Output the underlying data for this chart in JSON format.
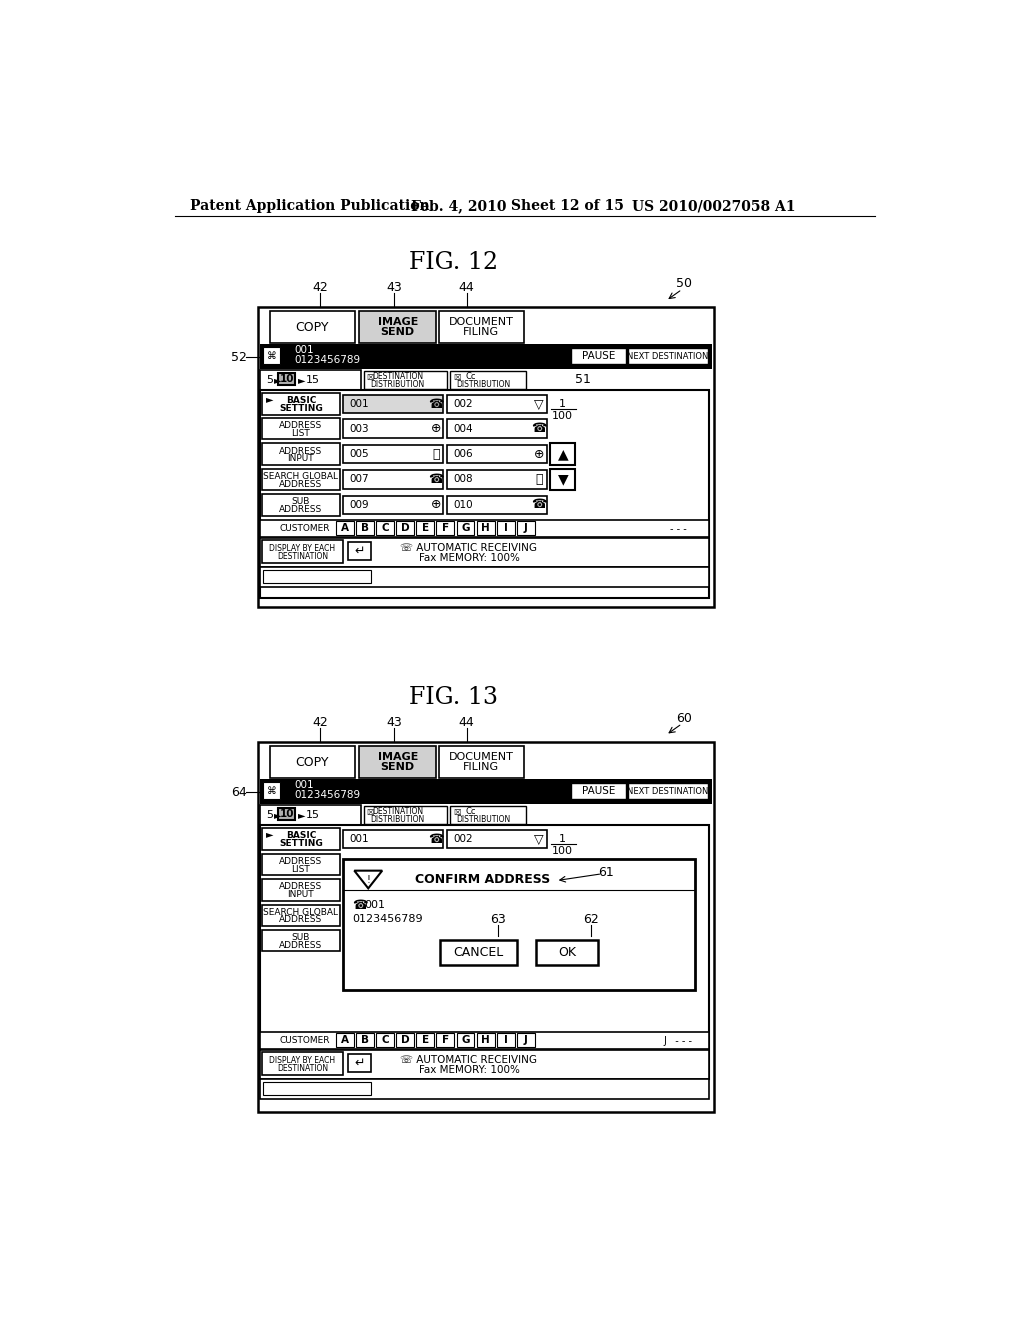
{
  "bg_color": "#ffffff",
  "header_text": "Patent Application Publication",
  "header_date": "Feb. 4, 2010",
  "header_sheet": "Sheet 12 of 15",
  "header_patent": "US 2010/0027058 A1",
  "fig12_title": "FIG. 12",
  "fig13_title": "FIG. 13",
  "letters": [
    "A",
    "B",
    "C",
    "D",
    "E",
    "F",
    "G",
    "H",
    "I",
    "J"
  ]
}
